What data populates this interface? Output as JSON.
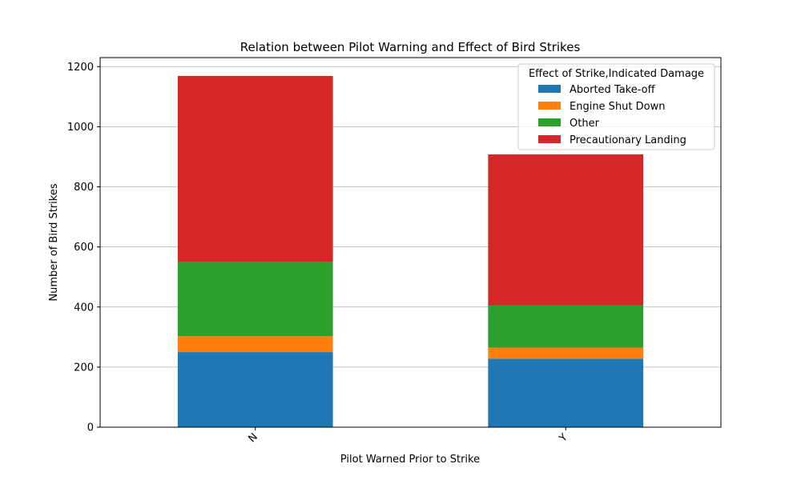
{
  "chart_data": {
    "type": "bar",
    "stacked": true,
    "title": "Relation between Pilot Warning and Effect of Bird Strikes",
    "xlabel": "Pilot Warned Prior to Strike",
    "ylabel": "Number of Bird Strikes",
    "categories": [
      "N",
      "Y"
    ],
    "ylim": [
      0,
      1230
    ],
    "yticks": [
      0,
      200,
      400,
      600,
      800,
      1000,
      1200
    ],
    "grid": "y",
    "legend": {
      "title": "Effect of Strike,Indicated Damage",
      "placement": "top-right"
    },
    "series": [
      {
        "name": "Aborted Take-off",
        "color": "#1f77b4",
        "values": [
          250,
          228
        ]
      },
      {
        "name": "Engine Shut Down",
        "color": "#ff7f0e",
        "values": [
          53,
          37
        ]
      },
      {
        "name": "Other",
        "color": "#2ca02c",
        "values": [
          246,
          141
        ]
      },
      {
        "name": "Precautionary Landing",
        "color": "#d62728",
        "values": [
          620,
          502
        ]
      }
    ]
  }
}
